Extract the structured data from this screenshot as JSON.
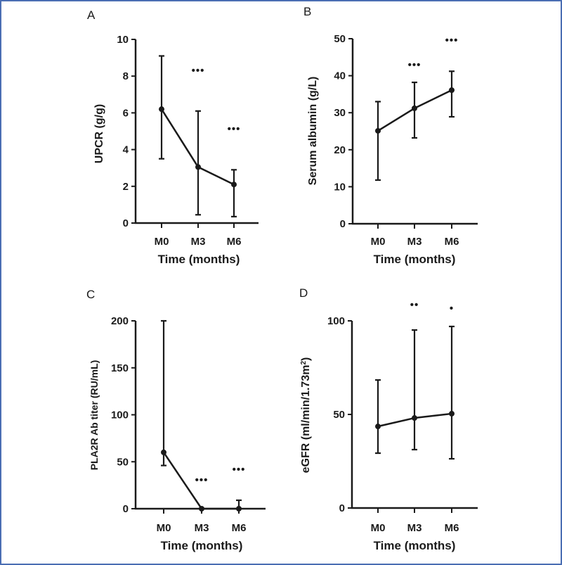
{
  "style": {
    "border_color": "#4a6eb3",
    "ink_color": "#1a1a1a"
  },
  "chart_data": [
    {
      "type": "line",
      "panel": "A",
      "title": "",
      "xlabel": "Time (months)",
      "ylabel": "UPCR (g/g)",
      "categories": [
        "M0",
        "M3",
        "M6"
      ],
      "ylim": [
        0,
        10
      ],
      "yticks": [
        "0",
        "2",
        "4",
        "6",
        "8",
        "10"
      ],
      "ytick_values": [
        0,
        2,
        4,
        6,
        8,
        10
      ],
      "series": [
        {
          "name": "UPCR",
          "values": [
            6.2,
            3.05,
            2.1
          ]
        }
      ],
      "error_upper": [
        9.1,
        6.1,
        2.9
      ],
      "error_lower": [
        3.5,
        0.45,
        0.35
      ],
      "significance": [
        "",
        "***",
        "***"
      ],
      "significance_display": [
        "",
        "•••",
        "•••"
      ],
      "grid": false
    },
    {
      "type": "line",
      "panel": "B",
      "title": "",
      "xlabel": "Time (months)",
      "ylabel": "Serum albumin (g/L)",
      "categories": [
        "M0",
        "M3",
        "M6"
      ],
      "ylim": [
        0,
        50
      ],
      "yticks": [
        "0",
        "10",
        "20",
        "30",
        "40",
        "50"
      ],
      "ytick_values": [
        0,
        10,
        20,
        30,
        40,
        50
      ],
      "series": [
        {
          "name": "Serum albumin",
          "values": [
            25.1,
            31.2,
            36.1
          ]
        }
      ],
      "error_upper": [
        33,
        38.2,
        41.2
      ],
      "error_lower": [
        11.8,
        23.2,
        28.9
      ],
      "significance": [
        "",
        "***",
        "***"
      ],
      "significance_display": [
        "",
        "•••",
        "•••"
      ],
      "grid": false
    },
    {
      "type": "line",
      "panel": "C",
      "title": "",
      "xlabel": "Time (months)",
      "ylabel": "PLA2R Ab titer (RU/mL)",
      "categories": [
        "M0",
        "M3",
        "M6"
      ],
      "ylim": [
        0,
        200
      ],
      "yticks": [
        "0",
        "50",
        "100",
        "150",
        "200"
      ],
      "ytick_values": [
        0,
        50,
        100,
        150,
        200
      ],
      "series": [
        {
          "name": "PLA2R Ab titer",
          "values": [
            60,
            0,
            0
          ]
        }
      ],
      "error_upper": [
        200,
        0,
        9
      ],
      "error_lower": [
        46,
        0,
        0
      ],
      "significance": [
        "",
        "***",
        "***"
      ],
      "significance_display": [
        "",
        "•••",
        "•••"
      ],
      "grid": false
    },
    {
      "type": "line",
      "panel": "D",
      "title": "",
      "xlabel": "Time (months)",
      "ylabel": "eGFR (ml/min/1.73m",
      "ylabel_sup": "2",
      "ylabel_end": ")",
      "categories": [
        "M0",
        "M3",
        "M6"
      ],
      "ylim": [
        0,
        100
      ],
      "yticks": [
        "0",
        "50",
        "100"
      ],
      "ytick_values": [
        0,
        50,
        100
      ],
      "series": [
        {
          "name": "eGFR",
          "values": [
            43.6,
            48.1,
            50.4
          ]
        }
      ],
      "error_upper": [
        68.4,
        95.1,
        97
      ],
      "error_lower": [
        29.3,
        31.2,
        26.3
      ],
      "significance": [
        "",
        "**",
        "*"
      ],
      "significance_display": [
        "",
        "••",
        "•"
      ],
      "grid": false
    }
  ]
}
